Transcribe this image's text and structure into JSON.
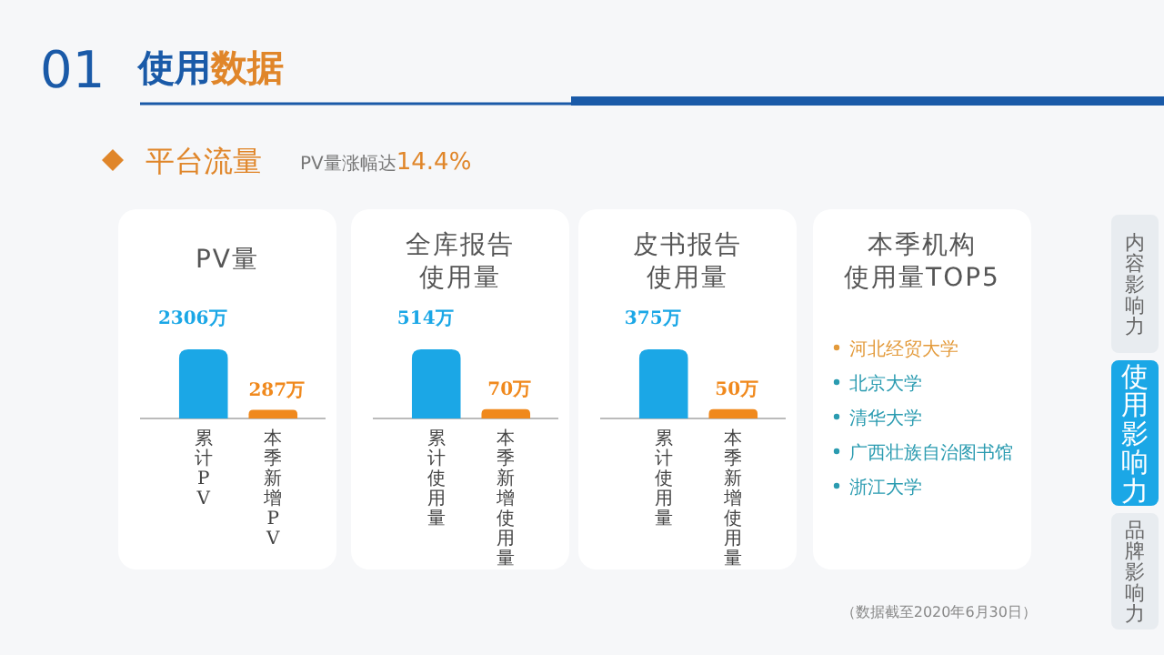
{
  "chart_data": [
    {
      "type": "bar",
      "title": "PV量",
      "categories": [
        "累计PV",
        "本季新增PV"
      ],
      "values": [
        2306,
        287
      ],
      "colors": [
        "#1ba7e6",
        "#f0891d"
      ],
      "value_labels": [
        "2306万",
        "287万"
      ],
      "annotations": [
        "01",
        "使用数据",
        "平台流量",
        "PV量涨幅达14.4%",
        "（数据截至2020年6月30日）",
        "内容影响力",
        "使用影响力",
        "品牌影响力"
      ]
    },
    {
      "type": "bar",
      "title": "全库报告使用量",
      "categories": [
        "累计使用量",
        "本季新增使用量"
      ],
      "values": [
        514,
        70
      ],
      "colors": [
        "#1ba7e6",
        "#f0891d"
      ],
      "value_labels": [
        "514万",
        "70万"
      ]
    },
    {
      "type": "bar",
      "title": "皮书报告使用量",
      "categories": [
        "累计使用量",
        "本季新增使用量"
      ],
      "values": [
        375,
        50
      ],
      "colors": [
        "#1ba7e6",
        "#f0891d"
      ],
      "value_labels": [
        "375万",
        "50万"
      ]
    },
    {
      "type": "other",
      "title": "本季机构使用量TOP5",
      "annotations": [
        "河北经贸大学",
        "北京大学",
        "清华大学",
        "广西壮族自治图书馆",
        "浙江大学"
      ],
      "colors": [
        "#e39a3a",
        "#2a9bb0",
        "#2a9bb0",
        "#2a9bb0",
        "#2a9bb0"
      ]
    }
  ]
}
